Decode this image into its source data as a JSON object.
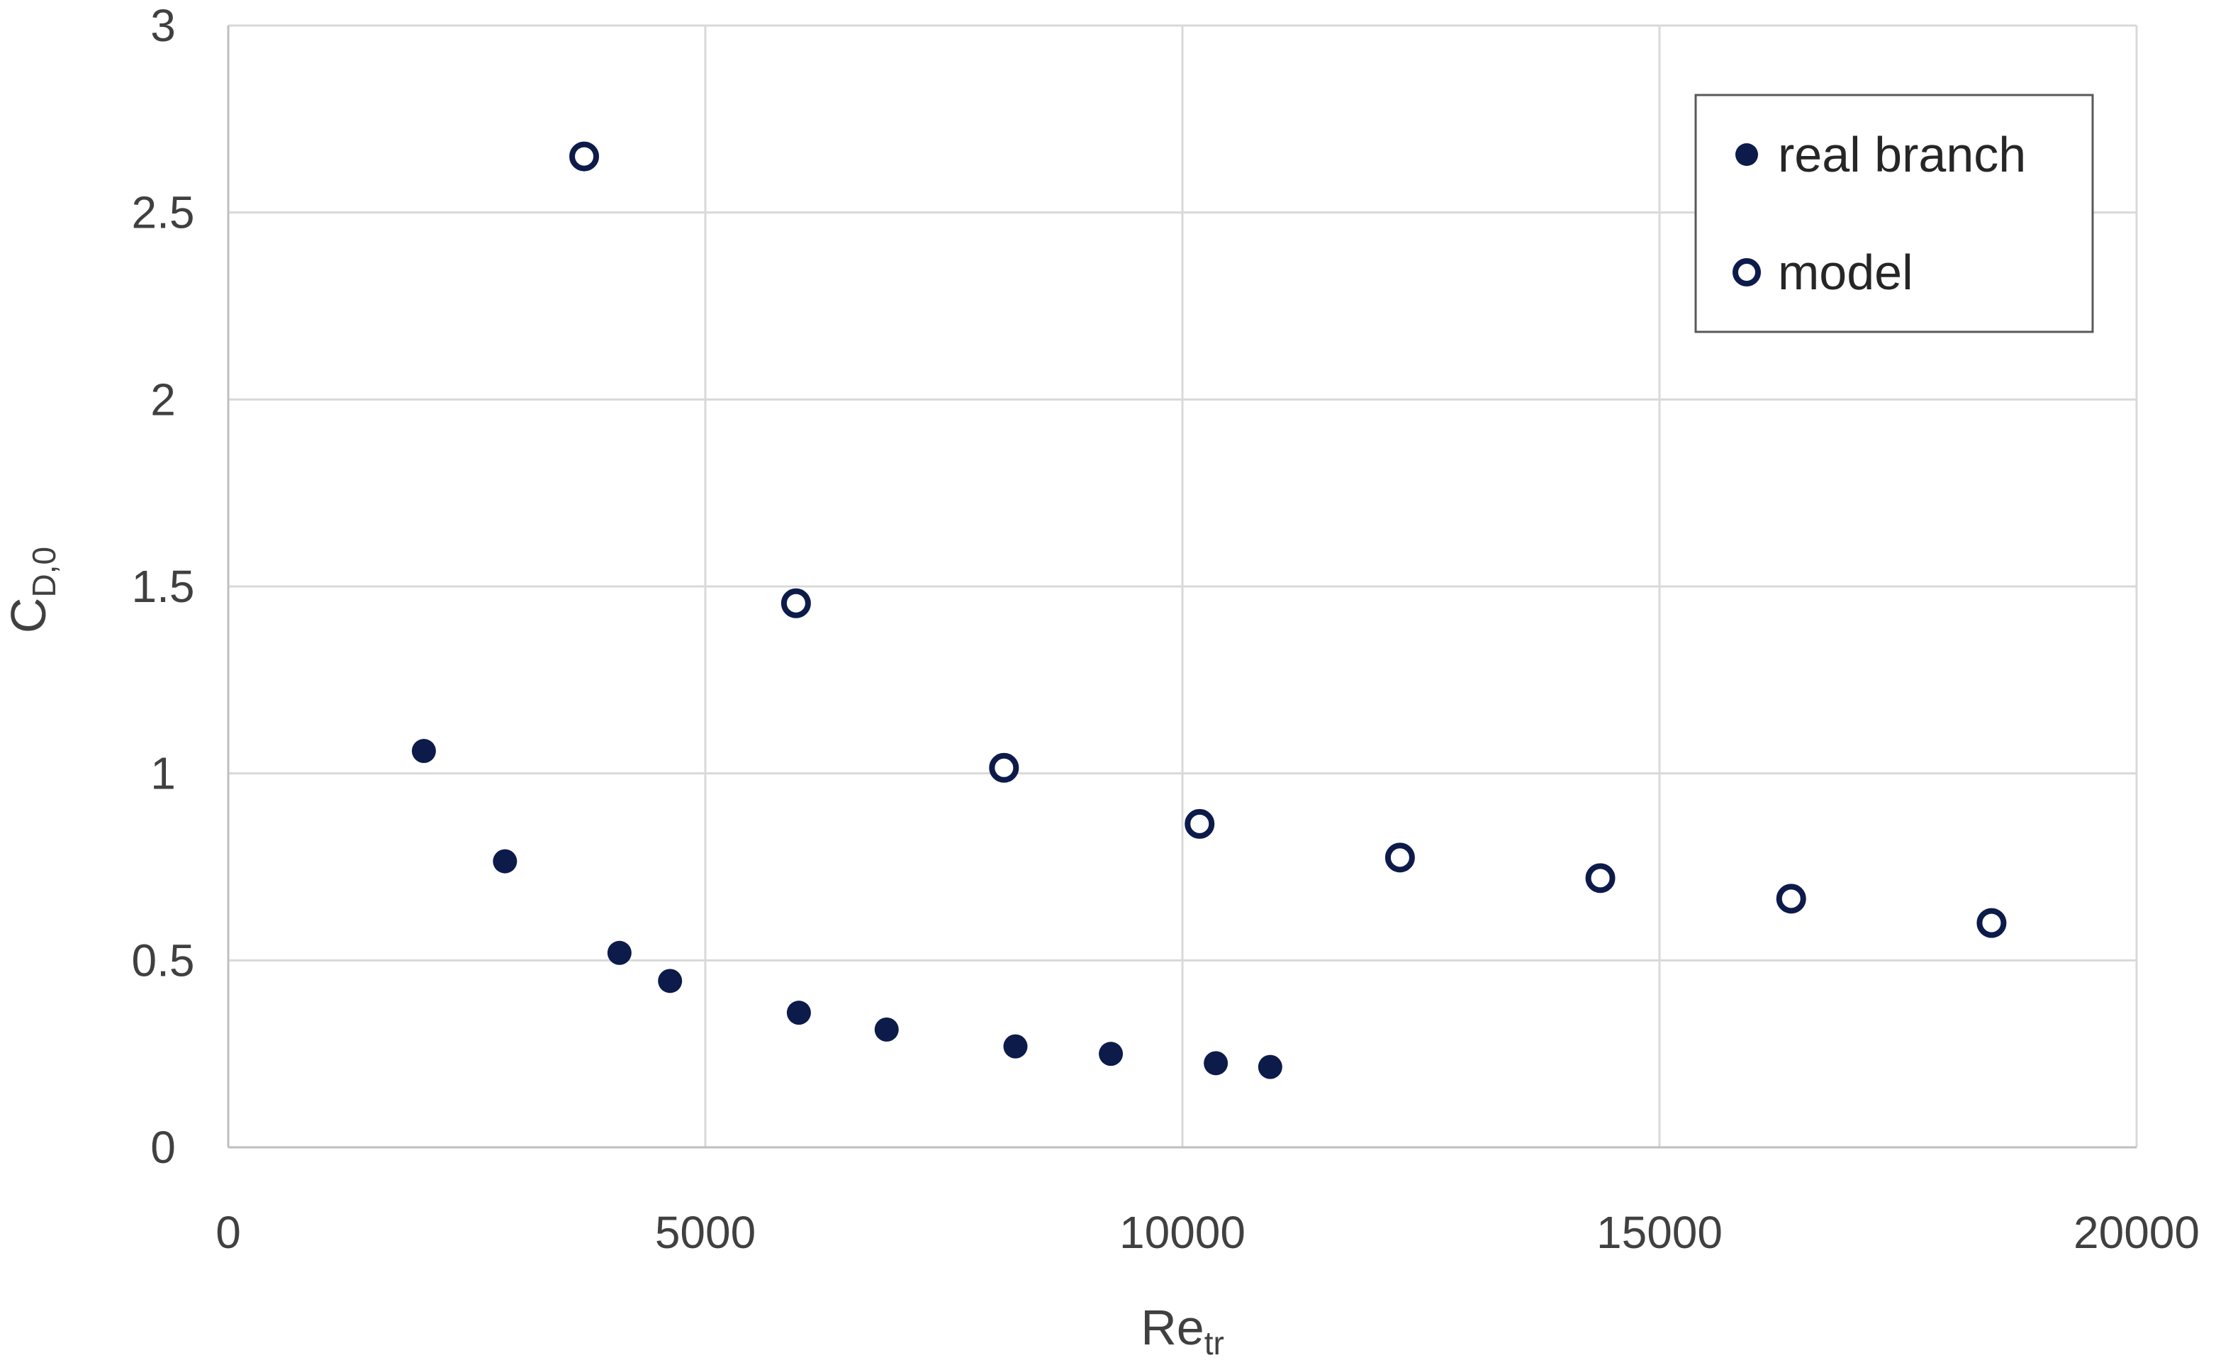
{
  "chart_data": {
    "type": "scatter",
    "title": "",
    "xlabel": {
      "main": "Re",
      "sub": "tr"
    },
    "ylabel": {
      "main": "C",
      "sub": "D,0"
    },
    "xlim": [
      0,
      20000
    ],
    "ylim": [
      0,
      3
    ],
    "x_ticks": [
      0,
      5000,
      10000,
      15000,
      20000
    ],
    "x_tick_labels": [
      "0",
      "5000",
      "10000",
      "15000",
      "20000"
    ],
    "y_ticks": [
      0,
      0.5,
      1,
      1.5,
      2,
      2.5,
      3
    ],
    "y_tick_labels": [
      "0",
      "0.5",
      "1",
      "1.5",
      "2",
      "2.5",
      "3"
    ],
    "grid": true,
    "legend_position": "top-right",
    "series": [
      {
        "name": "real branch",
        "marker": "filled-circle",
        "color": "#0d1b4b",
        "points": [
          {
            "x": 2050,
            "y": 1.06
          },
          {
            "x": 2900,
            "y": 0.765
          },
          {
            "x": 4100,
            "y": 0.52
          },
          {
            "x": 4630,
            "y": 0.445
          },
          {
            "x": 5980,
            "y": 0.36
          },
          {
            "x": 6900,
            "y": 0.315
          },
          {
            "x": 8250,
            "y": 0.27
          },
          {
            "x": 9250,
            "y": 0.25
          },
          {
            "x": 10350,
            "y": 0.225
          },
          {
            "x": 10920,
            "y": 0.215
          }
        ]
      },
      {
        "name": "model",
        "marker": "open-circle",
        "color": "#0d1b4b",
        "points": [
          {
            "x": 3730,
            "y": 2.65
          },
          {
            "x": 5950,
            "y": 1.455
          },
          {
            "x": 8130,
            "y": 1.015
          },
          {
            "x": 10180,
            "y": 0.865
          },
          {
            "x": 12280,
            "y": 0.775
          },
          {
            "x": 14380,
            "y": 0.72
          },
          {
            "x": 16380,
            "y": 0.665
          },
          {
            "x": 18480,
            "y": 0.6
          }
        ]
      }
    ],
    "colors": {
      "grid": "#d9d9d9",
      "axis": "#bfbfbf",
      "marker": "#0d1b4b",
      "text": "#404040"
    }
  }
}
